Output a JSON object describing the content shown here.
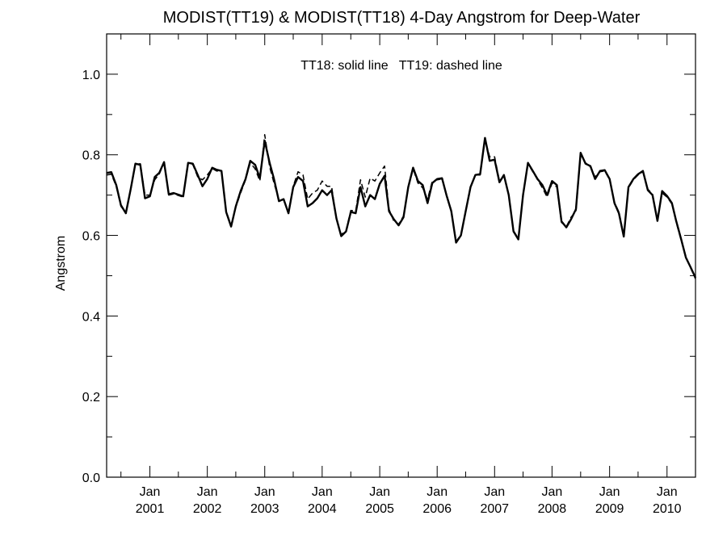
{
  "chart_data": {
    "type": "line",
    "title": "MODIST(TT19) & MODIST(TT18) 4-Day Angstrom for Deep-Water",
    "annotation": "TT18: solid line   TT19: dashed line",
    "ylabel": "Angstrom",
    "xlabel": "",
    "ylim": [
      0.0,
      1.1
    ],
    "xlim": [
      "2000-04-01",
      "2010-07-01"
    ],
    "grid": false,
    "y_ticks": [
      {
        "value": 0.0,
        "label": "0.0"
      },
      {
        "value": 0.2,
        "label": "0.2"
      },
      {
        "value": 0.4,
        "label": "0.4"
      },
      {
        "value": 0.6,
        "label": "0.6"
      },
      {
        "value": 0.8,
        "label": "0.8"
      },
      {
        "value": 1.0,
        "label": "1.0"
      }
    ],
    "x_ticks": [
      {
        "date": "2001-01-01",
        "month": "Jan",
        "year": "2001"
      },
      {
        "date": "2002-01-01",
        "month": "Jan",
        "year": "2002"
      },
      {
        "date": "2003-01-01",
        "month": "Jan",
        "year": "2003"
      },
      {
        "date": "2004-01-01",
        "month": "Jan",
        "year": "2004"
      },
      {
        "date": "2005-01-01",
        "month": "Jan",
        "year": "2005"
      },
      {
        "date": "2006-01-01",
        "month": "Jan",
        "year": "2006"
      },
      {
        "date": "2007-01-01",
        "month": "Jan",
        "year": "2007"
      },
      {
        "date": "2008-01-01",
        "month": "Jan",
        "year": "2008"
      },
      {
        "date": "2009-01-01",
        "month": "Jan",
        "year": "2009"
      },
      {
        "date": "2010-01-01",
        "month": "Jan",
        "year": "2010"
      }
    ],
    "series": [
      {
        "name": "TT18",
        "style": "solid",
        "color": "#000000",
        "points": [
          [
            "2000-04-01",
            0.755
          ],
          [
            "2000-05-01",
            0.757
          ],
          [
            "2000-06-01",
            0.725
          ],
          [
            "2000-07-01",
            0.675
          ],
          [
            "2000-08-01",
            0.655
          ],
          [
            "2000-09-01",
            0.715
          ],
          [
            "2000-10-01",
            0.778
          ],
          [
            "2000-11-01",
            0.775
          ],
          [
            "2000-12-01",
            0.692
          ],
          [
            "2001-01-01",
            0.697
          ],
          [
            "2001-02-01",
            0.745
          ],
          [
            "2001-03-01",
            0.755
          ],
          [
            "2001-04-01",
            0.782
          ],
          [
            "2001-05-01",
            0.702
          ],
          [
            "2001-06-01",
            0.705
          ],
          [
            "2001-08-01",
            0.697
          ],
          [
            "2001-09-01",
            0.78
          ],
          [
            "2001-10-01",
            0.778
          ],
          [
            "2001-11-01",
            0.75
          ],
          [
            "2001-12-01",
            0.722
          ],
          [
            "2002-01-01",
            0.74
          ],
          [
            "2002-02-01",
            0.768
          ],
          [
            "2002-03-01",
            0.763
          ],
          [
            "2002-04-01",
            0.76
          ],
          [
            "2002-05-01",
            0.658
          ],
          [
            "2002-06-01",
            0.622
          ],
          [
            "2002-07-01",
            0.672
          ],
          [
            "2002-08-01",
            0.71
          ],
          [
            "2002-09-01",
            0.74
          ],
          [
            "2002-10-01",
            0.785
          ],
          [
            "2002-11-01",
            0.775
          ],
          [
            "2002-12-01",
            0.742
          ],
          [
            "2003-01-01",
            0.835
          ],
          [
            "2003-02-01",
            0.78
          ],
          [
            "2003-03-01",
            0.74
          ],
          [
            "2003-04-01",
            0.685
          ],
          [
            "2003-05-01",
            0.69
          ],
          [
            "2003-06-01",
            0.655
          ],
          [
            "2003-07-01",
            0.72
          ],
          [
            "2003-08-01",
            0.745
          ],
          [
            "2003-09-01",
            0.735
          ],
          [
            "2003-10-01",
            0.672
          ],
          [
            "2003-11-01",
            0.68
          ],
          [
            "2003-12-01",
            0.692
          ],
          [
            "2004-01-01",
            0.712
          ],
          [
            "2004-02-01",
            0.7
          ],
          [
            "2004-03-01",
            0.712
          ],
          [
            "2004-04-01",
            0.642
          ],
          [
            "2004-05-01",
            0.598
          ],
          [
            "2004-06-01",
            0.61
          ],
          [
            "2004-07-01",
            0.658
          ],
          [
            "2004-08-01",
            0.655
          ],
          [
            "2004-09-01",
            0.72
          ],
          [
            "2004-10-01",
            0.672
          ],
          [
            "2004-11-01",
            0.7
          ],
          [
            "2004-12-01",
            0.69
          ],
          [
            "2005-01-01",
            0.728
          ],
          [
            "2005-02-01",
            0.748
          ],
          [
            "2005-03-01",
            0.66
          ],
          [
            "2005-04-01",
            0.64
          ],
          [
            "2005-05-01",
            0.625
          ],
          [
            "2005-06-01",
            0.645
          ],
          [
            "2005-07-01",
            0.72
          ],
          [
            "2005-08-01",
            0.768
          ],
          [
            "2005-09-01",
            0.735
          ],
          [
            "2005-10-01",
            0.725
          ],
          [
            "2005-11-01",
            0.68
          ],
          [
            "2005-12-01",
            0.73
          ],
          [
            "2006-01-01",
            0.74
          ],
          [
            "2006-02-01",
            0.742
          ],
          [
            "2006-03-01",
            0.7
          ],
          [
            "2006-04-01",
            0.66
          ],
          [
            "2006-05-01",
            0.582
          ],
          [
            "2006-06-01",
            0.6
          ],
          [
            "2006-07-01",
            0.66
          ],
          [
            "2006-08-01",
            0.72
          ],
          [
            "2006-09-01",
            0.75
          ],
          [
            "2006-10-01",
            0.752
          ],
          [
            "2006-11-01",
            0.842
          ],
          [
            "2006-12-01",
            0.785
          ],
          [
            "2007-01-01",
            0.788
          ],
          [
            "2007-02-01",
            0.732
          ],
          [
            "2007-03-01",
            0.75
          ],
          [
            "2007-04-01",
            0.7
          ],
          [
            "2007-05-01",
            0.61
          ],
          [
            "2007-06-01",
            0.59
          ],
          [
            "2007-07-01",
            0.7
          ],
          [
            "2007-08-01",
            0.78
          ],
          [
            "2007-09-01",
            0.76
          ],
          [
            "2007-10-01",
            0.74
          ],
          [
            "2007-11-01",
            0.725
          ],
          [
            "2007-12-01",
            0.7
          ],
          [
            "2008-01-01",
            0.735
          ],
          [
            "2008-02-01",
            0.725
          ],
          [
            "2008-03-01",
            0.635
          ],
          [
            "2008-04-01",
            0.62
          ],
          [
            "2008-05-01",
            0.64
          ],
          [
            "2008-06-01",
            0.665
          ],
          [
            "2008-07-01",
            0.805
          ],
          [
            "2008-08-01",
            0.778
          ],
          [
            "2008-09-01",
            0.772
          ],
          [
            "2008-10-01",
            0.74
          ],
          [
            "2008-11-01",
            0.76
          ],
          [
            "2008-12-01",
            0.762
          ],
          [
            "2009-01-01",
            0.74
          ],
          [
            "2009-02-01",
            0.68
          ],
          [
            "2009-03-01",
            0.655
          ],
          [
            "2009-04-01",
            0.597
          ],
          [
            "2009-05-01",
            0.72
          ],
          [
            "2009-06-01",
            0.74
          ],
          [
            "2009-07-01",
            0.752
          ],
          [
            "2009-08-01",
            0.76
          ],
          [
            "2009-09-01",
            0.712
          ],
          [
            "2009-10-01",
            0.7
          ],
          [
            "2009-11-01",
            0.636
          ],
          [
            "2009-12-01",
            0.71
          ],
          [
            "2010-01-01",
            0.698
          ],
          [
            "2010-02-01",
            0.68
          ],
          [
            "2010-03-01",
            0.635
          ],
          [
            "2010-04-01",
            0.59
          ],
          [
            "2010-05-01",
            0.545
          ],
          [
            "2010-06-01",
            0.52
          ],
          [
            "2010-07-01",
            0.495
          ]
        ]
      },
      {
        "name": "TT19",
        "style": "dashed",
        "color": "#000000",
        "points": [
          [
            "2000-04-01",
            0.75
          ],
          [
            "2000-05-01",
            0.752
          ],
          [
            "2000-06-01",
            0.722
          ],
          [
            "2000-07-01",
            0.672
          ],
          [
            "2000-08-01",
            0.657
          ],
          [
            "2000-09-01",
            0.712
          ],
          [
            "2000-10-01",
            0.776
          ],
          [
            "2000-11-01",
            0.778
          ],
          [
            "2000-12-01",
            0.7
          ],
          [
            "2001-01-01",
            0.7
          ],
          [
            "2001-02-01",
            0.738
          ],
          [
            "2001-03-01",
            0.752
          ],
          [
            "2001-04-01",
            0.78
          ],
          [
            "2001-05-01",
            0.7
          ],
          [
            "2001-06-01",
            0.703
          ],
          [
            "2001-08-01",
            0.695
          ],
          [
            "2001-09-01",
            0.778
          ],
          [
            "2001-10-01",
            0.776
          ],
          [
            "2001-11-01",
            0.745
          ],
          [
            "2001-12-01",
            0.738
          ],
          [
            "2002-01-01",
            0.75
          ],
          [
            "2002-02-01",
            0.766
          ],
          [
            "2002-03-01",
            0.76
          ],
          [
            "2002-04-01",
            0.758
          ],
          [
            "2002-05-01",
            0.66
          ],
          [
            "2002-06-01",
            0.625
          ],
          [
            "2002-07-01",
            0.67
          ],
          [
            "2002-08-01",
            0.705
          ],
          [
            "2002-09-01",
            0.738
          ],
          [
            "2002-10-01",
            0.78
          ],
          [
            "2002-11-01",
            0.765
          ],
          [
            "2002-12-01",
            0.735
          ],
          [
            "2003-01-01",
            0.85
          ],
          [
            "2003-02-01",
            0.77
          ],
          [
            "2003-03-01",
            0.73
          ],
          [
            "2003-04-01",
            0.688
          ],
          [
            "2003-05-01",
            0.688
          ],
          [
            "2003-06-01",
            0.658
          ],
          [
            "2003-07-01",
            0.722
          ],
          [
            "2003-08-01",
            0.758
          ],
          [
            "2003-09-01",
            0.75
          ],
          [
            "2003-10-01",
            0.69
          ],
          [
            "2003-11-01",
            0.705
          ],
          [
            "2003-12-01",
            0.712
          ],
          [
            "2004-01-01",
            0.735
          ],
          [
            "2004-02-01",
            0.722
          ],
          [
            "2004-03-01",
            0.722
          ],
          [
            "2004-04-01",
            0.64
          ],
          [
            "2004-05-01",
            0.602
          ],
          [
            "2004-06-01",
            0.612
          ],
          [
            "2004-07-01",
            0.662
          ],
          [
            "2004-08-01",
            0.66
          ],
          [
            "2004-09-01",
            0.738
          ],
          [
            "2004-10-01",
            0.695
          ],
          [
            "2004-11-01",
            0.742
          ],
          [
            "2004-12-01",
            0.735
          ],
          [
            "2005-01-01",
            0.755
          ],
          [
            "2005-02-01",
            0.772
          ],
          [
            "2005-03-01",
            0.665
          ],
          [
            "2005-04-01",
            0.635
          ],
          [
            "2005-05-01",
            0.628
          ],
          [
            "2005-06-01",
            0.648
          ],
          [
            "2005-07-01",
            0.718
          ],
          [
            "2005-08-01",
            0.765
          ],
          [
            "2005-09-01",
            0.73
          ],
          [
            "2005-10-01",
            0.718
          ],
          [
            "2005-11-01",
            0.69
          ],
          [
            "2005-12-01",
            0.735
          ],
          [
            "2006-01-01",
            0.738
          ],
          [
            "2006-02-01",
            0.74
          ],
          [
            "2006-03-01",
            0.702
          ],
          [
            "2006-04-01",
            0.662
          ],
          [
            "2006-05-01",
            0.585
          ],
          [
            "2006-06-01",
            0.602
          ],
          [
            "2006-07-01",
            0.662
          ],
          [
            "2006-08-01",
            0.722
          ],
          [
            "2006-09-01",
            0.75
          ],
          [
            "2006-10-01",
            0.75
          ],
          [
            "2006-11-01",
            0.838
          ],
          [
            "2006-12-01",
            0.795
          ],
          [
            "2007-01-01",
            0.795
          ],
          [
            "2007-02-01",
            0.735
          ],
          [
            "2007-03-01",
            0.748
          ],
          [
            "2007-04-01",
            0.702
          ],
          [
            "2007-05-01",
            0.612
          ],
          [
            "2007-06-01",
            0.592
          ],
          [
            "2007-07-01",
            0.702
          ],
          [
            "2007-08-01",
            0.778
          ],
          [
            "2007-09-01",
            0.758
          ],
          [
            "2007-10-01",
            0.738
          ],
          [
            "2007-11-01",
            0.718
          ],
          [
            "2007-12-01",
            0.695
          ],
          [
            "2008-01-01",
            0.73
          ],
          [
            "2008-02-01",
            0.72
          ],
          [
            "2008-03-01",
            0.632
          ],
          [
            "2008-04-01",
            0.622
          ],
          [
            "2008-05-01",
            0.645
          ],
          [
            "2008-06-01",
            0.66
          ],
          [
            "2008-07-01",
            0.8
          ],
          [
            "2008-08-01",
            0.78
          ],
          [
            "2008-09-01",
            0.77
          ],
          [
            "2008-10-01",
            0.745
          ],
          [
            "2008-11-01",
            0.758
          ],
          [
            "2008-12-01",
            0.76
          ],
          [
            "2009-01-01",
            0.738
          ],
          [
            "2009-02-01",
            0.682
          ],
          [
            "2009-03-01",
            0.658
          ],
          [
            "2009-04-01",
            0.6
          ],
          [
            "2009-05-01",
            0.718
          ],
          [
            "2009-06-01",
            0.738
          ],
          [
            "2009-07-01",
            0.75
          ],
          [
            "2009-08-01",
            0.758
          ],
          [
            "2009-09-01",
            0.715
          ],
          [
            "2009-10-01",
            0.702
          ],
          [
            "2009-11-01",
            0.64
          ],
          [
            "2009-12-01",
            0.705
          ],
          [
            "2010-01-01",
            0.695
          ],
          [
            "2010-02-01",
            0.678
          ],
          [
            "2010-03-01",
            0.632
          ],
          [
            "2010-04-01",
            0.588
          ],
          [
            "2010-05-01",
            0.548
          ],
          [
            "2010-06-01",
            0.518
          ],
          [
            "2010-07-01",
            0.492
          ]
        ]
      }
    ]
  }
}
